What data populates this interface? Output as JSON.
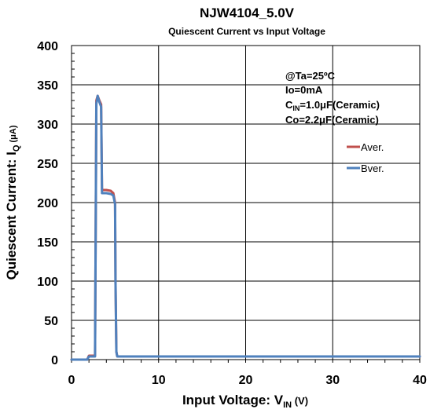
{
  "chart_data": {
    "type": "line",
    "title": "NJW4104_5.0V",
    "subtitle": "Quiescent Current vs Input Voltage",
    "xlabel": {
      "main": "Input Voltage: V",
      "sub": "IN",
      "unit": " (V)"
    },
    "ylabel": {
      "main": "Quiescent Current: I",
      "sub": "Q",
      "unit": " (μA)"
    },
    "xlim": [
      0,
      40
    ],
    "ylim": [
      0,
      400
    ],
    "xticks": [
      0,
      10,
      20,
      30,
      40
    ],
    "yticks": [
      0,
      50,
      100,
      150,
      200,
      250,
      300,
      350,
      400
    ],
    "xtick_labels": [
      "0",
      "10",
      "20",
      "30",
      "40"
    ],
    "ytick_labels": [
      "0",
      "50",
      "100",
      "150",
      "200",
      "250",
      "300",
      "350",
      "400"
    ],
    "grid": true,
    "legend": "right",
    "annotations": [
      {
        "text": "@Ta=25ºC"
      },
      {
        "text": "Io=0mA"
      },
      {
        "main": "C",
        "sub": "IN",
        "rest": "=1.0μF(Ceramic)"
      },
      {
        "text": "Co=2.2μF(Ceramic)"
      }
    ],
    "series": [
      {
        "name": "Aver.",
        "color": "#c0504d",
        "x": [
          0,
          1.8,
          2.0,
          2.5,
          2.7,
          2.85,
          3.0,
          3.2,
          3.4,
          3.5,
          3.6,
          4.0,
          4.5,
          4.8,
          5.0,
          5.05,
          5.15,
          5.25,
          40
        ],
        "y": [
          0,
          0,
          5,
          5,
          5,
          330,
          336,
          330,
          325,
          216,
          216,
          216,
          215,
          212,
          200,
          100,
          10,
          4,
          4
        ]
      },
      {
        "name": "Bver.",
        "color": "#4f81bd",
        "x": [
          0,
          1.8,
          2.0,
          2.5,
          2.7,
          2.85,
          3.0,
          3.2,
          3.4,
          3.5,
          3.6,
          4.0,
          4.5,
          4.8,
          5.0,
          5.05,
          5.15,
          5.25,
          40
        ],
        "y": [
          0,
          0,
          4,
          4,
          4,
          326,
          336,
          328,
          322,
          212,
          212,
          212,
          211,
          209,
          198,
          100,
          10,
          4,
          4
        ]
      }
    ]
  }
}
